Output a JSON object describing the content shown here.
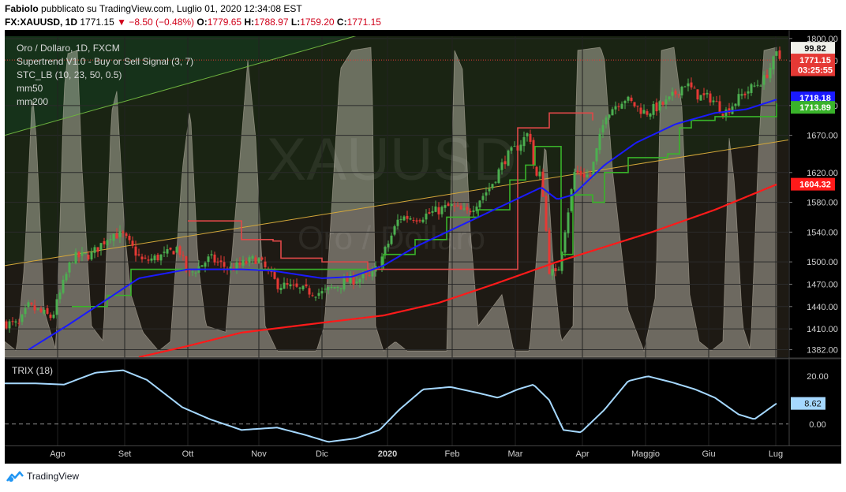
{
  "header": {
    "author": "Fabiolo",
    "published": "pubblicato su TradingView.com, Luglio 01, 2020 12:34:08 EST",
    "symbol": "FX:XAUUSD, 1D",
    "price": "1771.15",
    "change": "▼ −8.50 (−0.48%)",
    "o_label": "O:",
    "o_value": "1779.65",
    "h_label": "H:",
    "h_value": "1788.97",
    "l_label": "L:",
    "l_value": "1759.20",
    "c_label": "C:",
    "c_value": "1771.15"
  },
  "legend": {
    "title": "Oro / Dollaro, 1D, FXCM",
    "supertrend": "Supertrend V1.0 - Buy or Sell Signal (3, 7)",
    "stc": "STC_LB (10, 23, 50, 0.5)",
    "mm50": "mm50",
    "mm200": "mm200",
    "trix": "TRIX (18)"
  },
  "watermark": {
    "symbol": "XAUUSD",
    "name": "Oro / Dollaro"
  },
  "footer": {
    "brand": "TradingView"
  },
  "colors": {
    "up": "#4caf50",
    "down": "#e53935",
    "mm50": "#1a1aff",
    "mm200": "#ff1a1a",
    "supertrend_up": "#39b32a",
    "supertrend_down": "#e04848",
    "trix": "#a5d8ff",
    "stc_fill": "#f0eadc"
  },
  "price_axis": {
    "ticks": [
      1800,
      1770,
      1710,
      1670,
      1620,
      1580,
      1540,
      1500,
      1470,
      1440,
      1410,
      1382
    ],
    "tick_labels": [
      "1800.00",
      "1770.00",
      "1710.00",
      "1670.00",
      "1620.00",
      "1580.00",
      "1540.00",
      "1500.00",
      "1470.00",
      "1440.00",
      "1410.00",
      "1382.00"
    ],
    "range": [
      1372,
      1803
    ],
    "badges": [
      {
        "text": "99.82",
        "value": 1787,
        "style": "stc"
      },
      {
        "text": "1771.15",
        "value": 1771.15,
        "style": "price"
      },
      {
        "text": "03:25:55",
        "value": 1758,
        "style": "price"
      },
      {
        "text": "1718.18",
        "value": 1718.18,
        "style": "mm50"
      },
      {
        "text": "1713.89",
        "value": 1713.89,
        "style": "supertrend"
      },
      {
        "text": "1604.32",
        "value": 1604.32,
        "style": "mm200"
      }
    ]
  },
  "trix_axis": {
    "ticks": [
      20,
      0
    ],
    "tick_labels": [
      "20.00",
      "0.00"
    ],
    "range": [
      -9,
      27
    ],
    "badge": {
      "text": "8.62",
      "value": 8.62
    }
  },
  "time_axis": {
    "labels": [
      "Ago",
      "Set",
      "Ott",
      "Nov",
      "Dic",
      "2020",
      "Feb",
      "Mar",
      "Apr",
      "Maggio",
      "Giu",
      "Lug"
    ],
    "bold": [
      "2020"
    ],
    "positions": [
      67,
      152,
      232,
      322,
      402,
      485,
      567,
      647,
      732,
      812,
      892,
      977
    ]
  },
  "chart_data": {
    "type": "candlestick",
    "title": "Oro / Dollaro, 1D, FXCM",
    "x_range": [
      "2019-07",
      "2020-07-01"
    ],
    "y_range": [
      1372,
      1803
    ],
    "price_key_points": [
      [
        0,
        1418
      ],
      [
        18,
        1415
      ],
      [
        30,
        1440
      ],
      [
        60,
        1425
      ],
      [
        85,
        1505
      ],
      [
        110,
        1510
      ],
      [
        135,
        1538
      ],
      [
        150,
        1535
      ],
      [
        175,
        1500
      ],
      [
        205,
        1510
      ],
      [
        220,
        1520
      ],
      [
        232,
        1482
      ],
      [
        260,
        1505
      ],
      [
        285,
        1490
      ],
      [
        320,
        1505
      ],
      [
        345,
        1470
      ],
      [
        375,
        1462
      ],
      [
        402,
        1458
      ],
      [
        435,
        1475
      ],
      [
        465,
        1480
      ],
      [
        480,
        1510
      ],
      [
        500,
        1560
      ],
      [
        525,
        1560
      ],
      [
        565,
        1575
      ],
      [
        585,
        1565
      ],
      [
        615,
        1600
      ],
      [
        635,
        1640
      ],
      [
        650,
        1655
      ],
      [
        665,
        1675
      ],
      [
        672,
        1612
      ],
      [
        680,
        1618
      ],
      [
        690,
        1490
      ],
      [
        700,
        1480
      ],
      [
        710,
        1545
      ],
      [
        722,
        1620
      ],
      [
        742,
        1615
      ],
      [
        762,
        1700
      ],
      [
        785,
        1720
      ],
      [
        812,
        1700
      ],
      [
        840,
        1715
      ],
      [
        862,
        1740
      ],
      [
        880,
        1722
      ],
      [
        895,
        1720
      ],
      [
        912,
        1700
      ],
      [
        935,
        1725
      ],
      [
        962,
        1745
      ],
      [
        978,
        1778
      ],
      [
        984,
        1771
      ]
    ],
    "mm50": [
      [
        30,
        1382
      ],
      [
        80,
        1415
      ],
      [
        130,
        1450
      ],
      [
        170,
        1478
      ],
      [
        232,
        1490
      ],
      [
        300,
        1490
      ],
      [
        340,
        1488
      ],
      [
        402,
        1478
      ],
      [
        440,
        1480
      ],
      [
        480,
        1495
      ],
      [
        520,
        1520
      ],
      [
        560,
        1540
      ],
      [
        600,
        1560
      ],
      [
        640,
        1580
      ],
      [
        680,
        1600
      ],
      [
        700,
        1584
      ],
      [
        720,
        1590
      ],
      [
        760,
        1630
      ],
      [
        800,
        1660
      ],
      [
        850,
        1685
      ],
      [
        900,
        1700
      ],
      [
        940,
        1705
      ],
      [
        978,
        1718
      ]
    ],
    "mm200": [
      [
        170,
        1372
      ],
      [
        232,
        1387
      ],
      [
        300,
        1405
      ],
      [
        400,
        1418
      ],
      [
        480,
        1428
      ],
      [
        550,
        1445
      ],
      [
        620,
        1470
      ],
      [
        700,
        1500
      ],
      [
        760,
        1520
      ],
      [
        820,
        1540
      ],
      [
        900,
        1570
      ],
      [
        978,
        1604
      ]
    ],
    "supertrend_up": [
      [
        85,
        1440
      ],
      [
        130,
        1455
      ],
      [
        160,
        1490
      ],
      [
        232,
        1490
      ],
      [
        460,
        1490
      ],
      [
        480,
        1510
      ],
      [
        520,
        1530
      ],
      [
        560,
        1560
      ],
      [
        600,
        1570
      ],
      [
        640,
        1610
      ],
      [
        660,
        1630
      ],
      [
        672,
        1655
      ],
      [
        705,
        1510
      ],
      [
        720,
        1590
      ],
      [
        745,
        1580
      ],
      [
        760,
        1620
      ],
      [
        790,
        1640
      ],
      [
        840,
        1645
      ],
      [
        855,
        1680
      ],
      [
        870,
        1690
      ],
      [
        900,
        1695
      ],
      [
        950,
        1695
      ],
      [
        978,
        1713
      ]
    ],
    "supertrend_down": [
      [
        232,
        1555
      ],
      [
        300,
        1530
      ],
      [
        340,
        1528
      ],
      [
        350,
        1505
      ],
      [
        402,
        1500
      ],
      [
        460,
        1490
      ],
      [
        650,
        1680
      ],
      [
        690,
        1700
      ],
      [
        745,
        1690
      ]
    ],
    "trix": {
      "name": "TRIX (18)",
      "points": [
        [
          0,
          17
        ],
        [
          40,
          17
        ],
        [
          75,
          16.5
        ],
        [
          115,
          21.5
        ],
        [
          150,
          22.5
        ],
        [
          180,
          18.5
        ],
        [
          225,
          7
        ],
        [
          260,
          2
        ],
        [
          300,
          -2.5
        ],
        [
          345,
          -1.5
        ],
        [
          380,
          -4.5
        ],
        [
          410,
          -7.5
        ],
        [
          445,
          -6
        ],
        [
          475,
          -2.5
        ],
        [
          500,
          6
        ],
        [
          530,
          14.5
        ],
        [
          565,
          15.5
        ],
        [
          600,
          13
        ],
        [
          625,
          11
        ],
        [
          650,
          14.5
        ],
        [
          670,
          16.5
        ],
        [
          690,
          10
        ],
        [
          708,
          -2.5
        ],
        [
          730,
          -3.5
        ],
        [
          760,
          6
        ],
        [
          790,
          18
        ],
        [
          815,
          20
        ],
        [
          845,
          17.5
        ],
        [
          875,
          14.5
        ],
        [
          900,
          11
        ],
        [
          930,
          4
        ],
        [
          950,
          2
        ],
        [
          978,
          8.62
        ]
      ]
    },
    "stc_oscillator": {
      "name": "STC_LB (10, 23, 50, 0.5)",
      "range": [
        0,
        100
      ],
      "key_points": [
        [
          0,
          5
        ],
        [
          15,
          2
        ],
        [
          25,
          30
        ],
        [
          35,
          85
        ],
        [
          40,
          70
        ],
        [
          50,
          15
        ],
        [
          65,
          2
        ],
        [
          75,
          85
        ],
        [
          80,
          97
        ],
        [
          92,
          98
        ],
        [
          98,
          60
        ],
        [
          110,
          10
        ],
        [
          125,
          5
        ],
        [
          135,
          78
        ],
        [
          142,
          85
        ],
        [
          152,
          40
        ],
        [
          160,
          20
        ],
        [
          175,
          8
        ],
        [
          195,
          2
        ],
        [
          210,
          5
        ],
        [
          225,
          60
        ],
        [
          235,
          80
        ],
        [
          245,
          30
        ],
        [
          255,
          10
        ],
        [
          280,
          8
        ],
        [
          300,
          70
        ],
        [
          308,
          95
        ],
        [
          318,
          70
        ],
        [
          330,
          10
        ],
        [
          345,
          2
        ],
        [
          395,
          2
        ],
        [
          405,
          10
        ],
        [
          425,
          92
        ],
        [
          440,
          98
        ],
        [
          465,
          99
        ],
        [
          470,
          10
        ],
        [
          480,
          2
        ],
        [
          495,
          5
        ],
        [
          510,
          2
        ],
        [
          530,
          2
        ],
        [
          560,
          2
        ],
        [
          570,
          98
        ],
        [
          580,
          92
        ],
        [
          590,
          40
        ],
        [
          600,
          10
        ],
        [
          615,
          15
        ],
        [
          630,
          20
        ],
        [
          645,
          2
        ],
        [
          665,
          2
        ],
        [
          685,
          70
        ],
        [
          695,
          30
        ],
        [
          705,
          5
        ],
        [
          720,
          10
        ],
        [
          725,
          98
        ],
        [
          755,
          99
        ],
        [
          760,
          95
        ],
        [
          770,
          60
        ],
        [
          790,
          15
        ],
        [
          810,
          2
        ],
        [
          825,
          20
        ],
        [
          832,
          98
        ],
        [
          848,
          99
        ],
        [
          858,
          80
        ],
        [
          868,
          20
        ],
        [
          880,
          5
        ],
        [
          895,
          2
        ],
        [
          910,
          5
        ],
        [
          918,
          70
        ],
        [
          925,
          55
        ],
        [
          935,
          10
        ],
        [
          945,
          2
        ],
        [
          955,
          65
        ],
        [
          962,
          98
        ],
        [
          978,
          99
        ]
      ]
    },
    "trendlines": [
      {
        "color": "#6db33f",
        "from": [
          0,
          1670
        ],
        "to": [
          550,
          1835
        ]
      },
      {
        "color": "#d4a73a",
        "from": [
          0,
          1495
        ],
        "to": [
          1000,
          1665
        ]
      }
    ]
  }
}
